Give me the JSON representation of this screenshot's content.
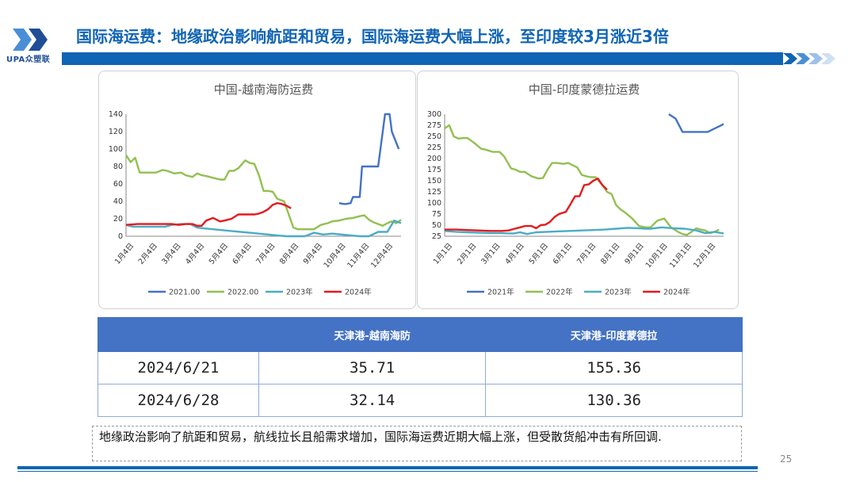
{
  "header": {
    "logo_text": "UPA众塑联",
    "title": "国际海运费：地缘政治影响航距和贸易，国际海运费大幅上涨，至印度较3月涨近3倍",
    "colors": {
      "accent": "#1064b4"
    }
  },
  "charts": [
    {
      "chart_data": {
        "type": "line",
        "title": "中国-越南海防运费",
        "ylim": [
          0,
          140
        ],
        "yticks": [
          "0",
          "20",
          "40",
          "60",
          "80",
          "100",
          "120",
          "140"
        ],
        "xticks": [
          "1月4日",
          "2月4日",
          "3月4日",
          "4月4日",
          "5月4日",
          "6月4日",
          "7月4日",
          "8月4日",
          "9月4日",
          "10月4日",
          "11月4日",
          "12月4日"
        ],
        "xrange": [
          0,
          12
        ],
        "legend_position": "bottom",
        "grid": false,
        "series": [
          {
            "name": "2021.00",
            "color": "#4472c4",
            "x": [
              9.3,
              9.5,
              9.6,
              9.8,
              9.9,
              10.2,
              10.3,
              10.6,
              10.9,
              11.0,
              11.3,
              11.5,
              11.6,
              11.9
            ],
            "y": [
              38,
              37,
              37,
              38,
              45,
              45,
              80,
              80,
              80,
              80,
              140,
              140,
              120,
              100
            ]
          },
          {
            "name": "2022.00",
            "color": "#92c050",
            "x": [
              0,
              0.2,
              0.4,
              0.6,
              0.8,
              1.0,
              1.3,
              1.6,
              1.8,
              2.1,
              2.4,
              2.6,
              2.9,
              3.1,
              3.3,
              3.5,
              3.8,
              4.1,
              4.3,
              4.5,
              4.7,
              4.9,
              5.2,
              5.4,
              5.6,
              5.8,
              6.0,
              6.2,
              6.4,
              6.6,
              6.9,
              7.1,
              7.3,
              7.5,
              7.7,
              7.9,
              8.2,
              8.5,
              8.8,
              9.0,
              9.3,
              9.6,
              9.9,
              10.2,
              10.4,
              10.6,
              10.8,
              11.0,
              11.2,
              11.4,
              11.6,
              11.8,
              12.0
            ],
            "y": [
              93,
              85,
              90,
              73,
              73,
              73,
              73,
              76,
              75,
              72,
              73,
              70,
              68,
              72,
              70,
              69,
              67,
              65,
              65,
              75,
              75,
              78,
              87,
              84,
              83,
              70,
              52,
              52,
              51,
              43,
              40,
              25,
              10,
              8,
              8,
              8,
              8,
              13,
              15,
              17,
              18,
              20,
              21,
              23,
              24,
              19,
              16,
              14,
              12,
              15,
              17,
              15,
              19
            ]
          },
          {
            "name": "2023年",
            "color": "#4bacc6",
            "x": [
              0,
              0.3,
              0.7,
              1.0,
              1.3,
              1.7,
              2.0,
              2.4,
              2.8,
              3.1,
              3.4,
              3.8,
              4.2,
              4.6,
              5.0,
              5.4,
              5.8,
              6.2,
              6.6,
              7.0,
              7.4,
              7.8,
              8.2,
              8.6,
              9.0,
              9.4,
              9.8,
              10.2,
              10.6,
              11.0,
              11.4,
              11.7,
              12.0
            ],
            "y": [
              13,
              11,
              11,
              11,
              11,
              11,
              13,
              14,
              14,
              10,
              9,
              8,
              7,
              6,
              5,
              4,
              3,
              2,
              1,
              0,
              0,
              0,
              4,
              2,
              3,
              2,
              1,
              0,
              0,
              5,
              5,
              18,
              15
            ]
          },
          {
            "name": "2024年",
            "color": "#e41a1c",
            "x": [
              0,
              0.5,
              1.0,
              1.5,
              2.0,
              2.3,
              2.6,
              2.9,
              3.1,
              3.3,
              3.5,
              3.8,
              4.1,
              4.3,
              4.6,
              4.9,
              5.2,
              5.4,
              5.6,
              5.8,
              6.0,
              6.2,
              6.4,
              6.6,
              6.8,
              7.0,
              7.2
            ],
            "y": [
              13,
              14,
              14,
              14,
              14,
              13,
              14,
              14,
              12,
              12,
              18,
              21,
              17,
              18,
              20,
              25,
              25,
              25,
              25,
              26,
              28,
              31,
              36,
              38,
              37,
              35,
              32
            ]
          }
        ]
      }
    },
    {
      "chart_data": {
        "type": "line",
        "title": "中国-印度蒙德拉运费",
        "ylim": [
          25,
          300
        ],
        "yticks": [
          "25",
          "50",
          "75",
          "100",
          "125",
          "150",
          "175",
          "200",
          "225",
          "250",
          "275",
          "300"
        ],
        "xticks": [
          "1月1日",
          "2月1日",
          "3月1日",
          "4月1日",
          "5月1日",
          "6月1日",
          "7月1日",
          "8月1日",
          "9月1日",
          "10月1日",
          "11月1日",
          "12月1日"
        ],
        "xrange": [
          0,
          12.2
        ],
        "legend_position": "bottom",
        "grid": false,
        "series": [
          {
            "name": "2021年",
            "color": "#4472c4",
            "x": [
              9.8,
              10.1,
              10.4,
              10.6,
              11.0,
              11.5,
              11.9,
              12.1,
              12.2
            ],
            "y": [
              300,
              290,
              260,
              260,
              260,
              260,
              270,
              275,
              278
            ]
          },
          {
            "name": "2022年",
            "color": "#92c050",
            "x": [
              0,
              0.2,
              0.4,
              0.6,
              0.8,
              1.0,
              1.3,
              1.6,
              1.8,
              2.1,
              2.4,
              2.6,
              2.9,
              3.1,
              3.3,
              3.5,
              3.8,
              4.1,
              4.3,
              4.5,
              4.7,
              4.9,
              5.2,
              5.4,
              5.6,
              5.8,
              6.0,
              6.2,
              6.4,
              6.6,
              6.9,
              7.1,
              7.3,
              7.5,
              7.7,
              7.9,
              8.2,
              8.5,
              8.8,
              9.0,
              9.3,
              9.6,
              9.9,
              10.2,
              10.4,
              10.6,
              10.8,
              11.0,
              11.2,
              11.4,
              11.6,
              11.8,
              12.0
            ],
            "y": [
              268,
              275,
              250,
              245,
              246,
              246,
              235,
              222,
              220,
              215,
              215,
              205,
              178,
              175,
              170,
              170,
              160,
              155,
              156,
              175,
              190,
              190,
              188,
              190,
              185,
              180,
              163,
              160,
              158,
              158,
              140,
              125,
              120,
              95,
              85,
              78,
              65,
              48,
              45,
              45,
              60,
              65,
              45,
              35,
              30,
              28,
              35,
              43,
              40,
              38,
              32,
              35,
              40
            ]
          },
          {
            "name": "2023年",
            "color": "#4bacc6",
            "x": [
              0,
              0.5,
              1.0,
              1.5,
              2.0,
              2.5,
              3.0,
              3.3,
              3.6,
              4.0,
              4.5,
              5.0,
              5.5,
              6.0,
              6.5,
              7.0,
              7.5,
              8.0,
              8.5,
              8.8,
              9.0,
              9.5,
              10.0,
              10.5,
              11.0,
              11.4,
              11.8,
              12.2
            ],
            "y": [
              37,
              35,
              34,
              33,
              32,
              32,
              31,
              34,
              30,
              34,
              35,
              36,
              37,
              38,
              39,
              40,
              42,
              44,
              43,
              42,
              42,
              45,
              43,
              42,
              38,
              32,
              35,
              31
            ]
          },
          {
            "name": "2024年",
            "color": "#e41a1c",
            "x": [
              0,
              0.5,
              1.0,
              1.5,
              2.0,
              2.5,
              2.8,
              3.0,
              3.3,
              3.5,
              3.8,
              4.0,
              4.2,
              4.4,
              4.6,
              4.8,
              5.0,
              5.3,
              5.5,
              5.7,
              5.9,
              6.1,
              6.3,
              6.5,
              6.7,
              6.9,
              7.1
            ],
            "y": [
              40,
              40,
              39,
              38,
              37,
              37,
              38,
              41,
              45,
              48,
              48,
              43,
              50,
              51,
              57,
              68,
              75,
              80,
              97,
              115,
              115,
              140,
              142,
              150,
              155,
              140,
              130
            ]
          }
        ]
      }
    }
  ],
  "table": {
    "headers": [
      "",
      "天津港-越南海防",
      "天津港-印度蒙德拉"
    ],
    "rows": [
      [
        "2024/6/21",
        "35.71",
        "155.36"
      ],
      [
        "2024/6/28",
        "32.14",
        "130.36"
      ]
    ]
  },
  "note": "地缘政治影响了航距和贸易，航线拉长且船需求增加，国际海运费近期大幅上涨，但受散货船冲击有所回调.",
  "page_number": "25"
}
